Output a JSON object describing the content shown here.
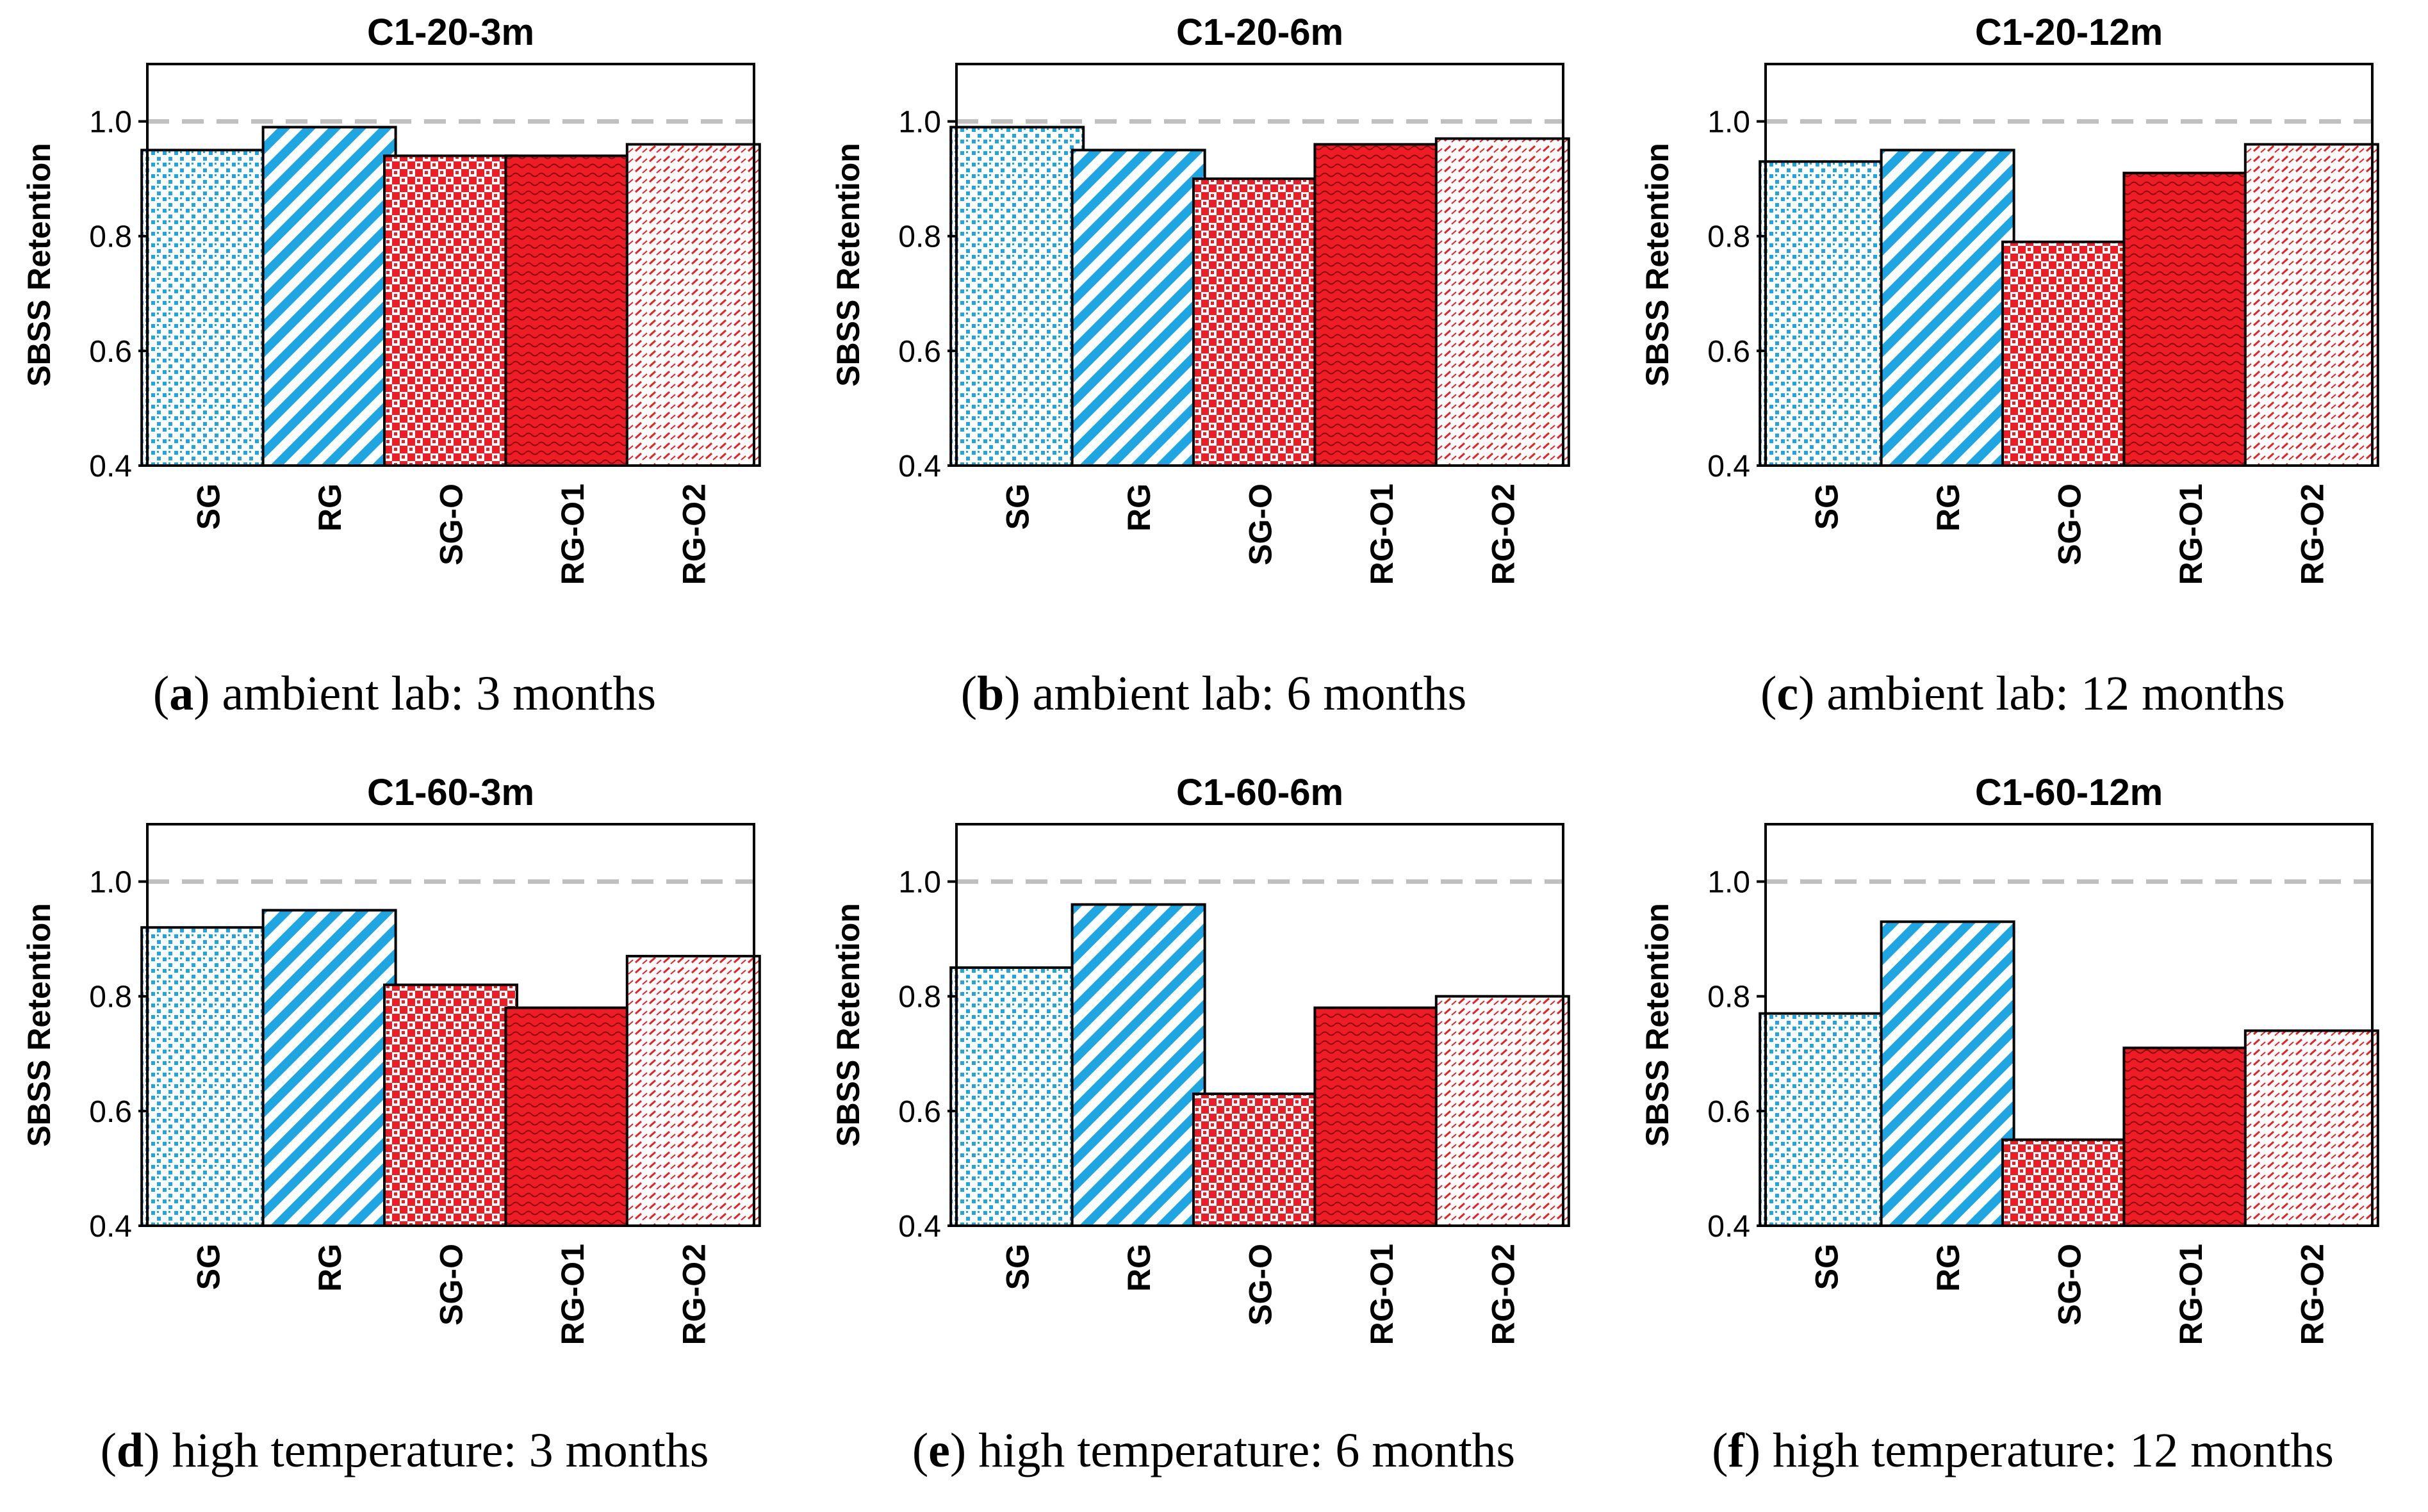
{
  "colors": {
    "blue": "#1ea6e2",
    "red": "#ee1c24",
    "reference_line": "#bfbfbf"
  },
  "chart_data": [
    {
      "type": "bar",
      "title": "C1-20-3m",
      "caption_letter": "a",
      "caption_text": ") ambient lab: 3 months",
      "ylabel": "SBSS Retention",
      "ylim": [
        0.4,
        1.1
      ],
      "yticks": [
        "0.4",
        "0.6",
        "0.8",
        "1.0"
      ],
      "reference_line": 1.0,
      "categories": [
        "SG",
        "RG",
        "SG-O",
        "RG-O1",
        "RG-O2"
      ],
      "values": [
        0.95,
        0.99,
        0.94,
        0.94,
        0.96
      ]
    },
    {
      "type": "bar",
      "title": "C1-20-6m",
      "caption_letter": "b",
      "caption_text": ") ambient lab: 6 months",
      "ylabel": "SBSS Retention",
      "ylim": [
        0.4,
        1.1
      ],
      "yticks": [
        "0.4",
        "0.6",
        "0.8",
        "1.0"
      ],
      "reference_line": 1.0,
      "categories": [
        "SG",
        "RG",
        "SG-O",
        "RG-O1",
        "RG-O2"
      ],
      "values": [
        0.99,
        0.95,
        0.9,
        0.96,
        0.97
      ]
    },
    {
      "type": "bar",
      "title": "C1-20-12m",
      "caption_letter": "c",
      "caption_text": ") ambient lab: 12 months",
      "ylabel": "SBSS Retention",
      "ylim": [
        0.4,
        1.1
      ],
      "yticks": [
        "0.4",
        "0.6",
        "0.8",
        "1.0"
      ],
      "reference_line": 1.0,
      "categories": [
        "SG",
        "RG",
        "SG-O",
        "RG-O1",
        "RG-O2"
      ],
      "values": [
        0.93,
        0.95,
        0.79,
        0.91,
        0.96
      ]
    },
    {
      "type": "bar",
      "title": "C1-60-3m",
      "caption_letter": "d",
      "caption_text": ") high temperature: 3 months",
      "ylabel": "SBSS Retention",
      "ylim": [
        0.4,
        1.1
      ],
      "yticks": [
        "0.4",
        "0.6",
        "0.8",
        "1.0"
      ],
      "reference_line": 1.0,
      "categories": [
        "SG",
        "RG",
        "SG-O",
        "RG-O1",
        "RG-O2"
      ],
      "values": [
        0.92,
        0.95,
        0.82,
        0.78,
        0.87
      ]
    },
    {
      "type": "bar",
      "title": "C1-60-6m",
      "caption_letter": "e",
      "caption_text": ") high temperature: 6 months",
      "ylabel": "SBSS Retention",
      "ylim": [
        0.4,
        1.1
      ],
      "yticks": [
        "0.4",
        "0.6",
        "0.8",
        "1.0"
      ],
      "reference_line": 1.0,
      "categories": [
        "SG",
        "RG",
        "SG-O",
        "RG-O1",
        "RG-O2"
      ],
      "values": [
        0.85,
        0.96,
        0.63,
        0.78,
        0.8
      ]
    },
    {
      "type": "bar",
      "title": "C1-60-12m",
      "caption_letter": "f",
      "caption_text": ") high temperature: 12 months",
      "ylabel": "SBSS Retention",
      "ylim": [
        0.4,
        1.1
      ],
      "yticks": [
        "0.4",
        "0.6",
        "0.8",
        "1.0"
      ],
      "reference_line": 1.0,
      "categories": [
        "SG",
        "RG",
        "SG-O",
        "RG-O1",
        "RG-O2"
      ],
      "values": [
        0.77,
        0.93,
        0.55,
        0.71,
        0.74
      ]
    }
  ]
}
